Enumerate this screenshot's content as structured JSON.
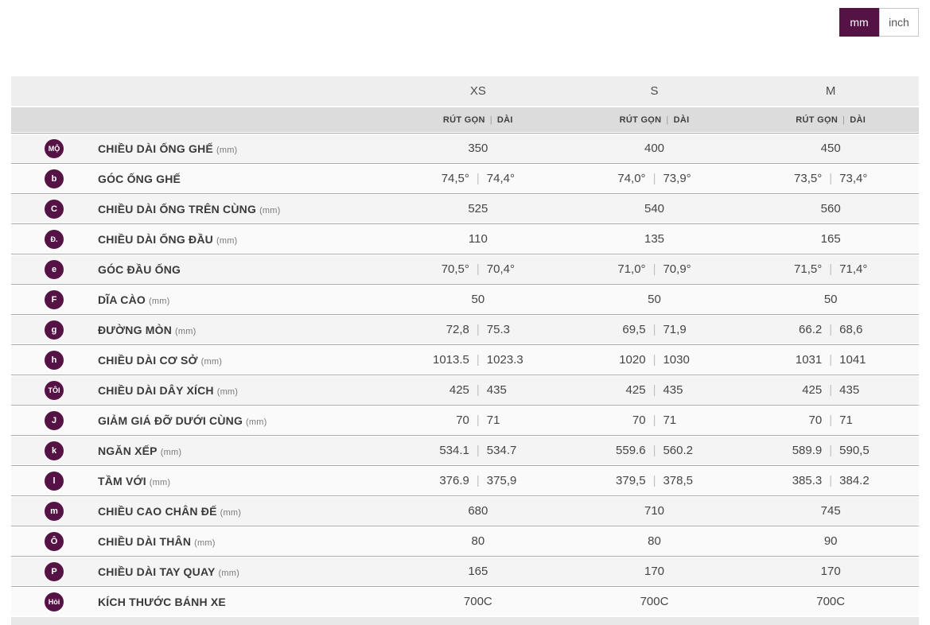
{
  "unit_toggle": {
    "options": [
      {
        "label": "mm",
        "selected": true
      },
      {
        "label": "inch",
        "selected": false
      }
    ]
  },
  "colors": {
    "accent_purple": "#541245",
    "size_header_bg": "#eeeeee",
    "subheader_bg": "#dcdcdc",
    "row_odd_bg": "#f4f4f4",
    "row_even_bg": "#fafafa",
    "divider": "#ababab"
  },
  "table": {
    "size_headers": [
      "XS",
      "S",
      "M"
    ],
    "subheader": {
      "short_label": "RÚT GỌN",
      "separator": "|",
      "long_label": "DÀI"
    },
    "rows": [
      {
        "badge": "MỘ",
        "label": "CHIỀU DÀI ỐNG GHẾ",
        "unit": "(mm)",
        "values": [
          [
            "350"
          ],
          [
            "400"
          ],
          [
            "450"
          ]
        ]
      },
      {
        "badge": "b",
        "label": "GÓC ỐNG GHẾ",
        "unit": "",
        "values": [
          [
            "74,5°",
            "74,4°"
          ],
          [
            "74,0°",
            "73,9°"
          ],
          [
            "73,5°",
            "73,4°"
          ]
        ]
      },
      {
        "badge": "C",
        "label": "CHIỀU DÀI ỐNG TRÊN CÙNG",
        "unit": "(mm)",
        "values": [
          [
            "525"
          ],
          [
            "540"
          ],
          [
            "560"
          ]
        ]
      },
      {
        "badge": "Đ.",
        "label": "CHIỀU DÀI ỐNG ĐẦU",
        "unit": "(mm)",
        "values": [
          [
            "110"
          ],
          [
            "135"
          ],
          [
            "165"
          ]
        ]
      },
      {
        "badge": "e",
        "label": "GÓC ĐẦU ỐNG",
        "unit": "",
        "values": [
          [
            "70,5°",
            "70,4°"
          ],
          [
            "71,0°",
            "70,9°"
          ],
          [
            "71,5°",
            "71,4°"
          ]
        ]
      },
      {
        "badge": "F",
        "label": "DĨA CÀO",
        "unit": "(mm)",
        "values": [
          [
            "50"
          ],
          [
            "50"
          ],
          [
            "50"
          ]
        ]
      },
      {
        "badge": "g",
        "label": "ĐƯỜNG MÒN",
        "unit": "(mm)",
        "values": [
          [
            "72,8",
            "75.3"
          ],
          [
            "69,5",
            "71,9"
          ],
          [
            "66.2",
            "68,6"
          ]
        ]
      },
      {
        "badge": "h",
        "label": "CHIỀU DÀI CƠ SỞ",
        "unit": "(mm)",
        "values": [
          [
            "1013.5",
            "1023.3"
          ],
          [
            "1020",
            "1030"
          ],
          [
            "1031",
            "1041"
          ]
        ]
      },
      {
        "badge": "TÔI",
        "label": "CHIỀU DÀI DÂY XÍCH",
        "unit": "(mm)",
        "values": [
          [
            "425",
            "435"
          ],
          [
            "425",
            "435"
          ],
          [
            "425",
            "435"
          ]
        ]
      },
      {
        "badge": "J",
        "label": "GIẢM GIÁ ĐỠ DƯỚI CÙNG",
        "unit": "(mm)",
        "values": [
          [
            "70",
            "71"
          ],
          [
            "70",
            "71"
          ],
          [
            "70",
            "71"
          ]
        ]
      },
      {
        "badge": "k",
        "label": "NGĂN XẾP",
        "unit": "(mm)",
        "values": [
          [
            "534.1",
            "534.7"
          ],
          [
            "559.6",
            "560.2"
          ],
          [
            "589.9",
            "590,5"
          ]
        ]
      },
      {
        "badge": "l",
        "label": "TẦM VỚI",
        "unit": "(mm)",
        "values": [
          [
            "376.9",
            "375,9"
          ],
          [
            "379,5",
            "378,5"
          ],
          [
            "385.3",
            "384.2"
          ]
        ]
      },
      {
        "badge": "m",
        "label": "CHIỀU CAO CHÂN ĐẾ",
        "unit": "(mm)",
        "values": [
          [
            "680"
          ],
          [
            "710"
          ],
          [
            "745"
          ]
        ]
      },
      {
        "badge": "Ô",
        "label": "CHIỀU DÀI THÂN",
        "unit": "(mm)",
        "values": [
          [
            "80"
          ],
          [
            "80"
          ],
          [
            "90"
          ]
        ]
      },
      {
        "badge": "P",
        "label": "CHIỀU DÀI TAY QUAY",
        "unit": "(mm)",
        "values": [
          [
            "165"
          ],
          [
            "170"
          ],
          [
            "170"
          ]
        ]
      },
      {
        "badge": "Hỏi",
        "label": "KÍCH THƯỚC BÁNH XE",
        "unit": "",
        "values": [
          [
            "700C"
          ],
          [
            "700C"
          ],
          [
            "700C"
          ]
        ]
      }
    ]
  }
}
